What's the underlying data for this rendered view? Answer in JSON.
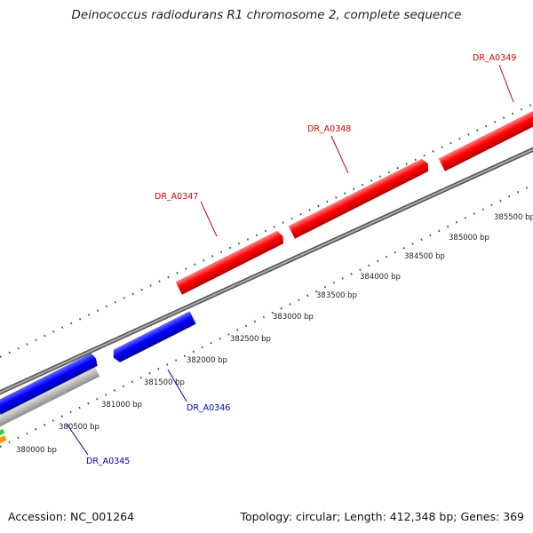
{
  "title": "Deinococcus radiodurans R1 chromosome 2, complete sequence",
  "footer": {
    "accession": "Accession: NC_001264",
    "summary": "Topology: circular; Length: 412,348 bp; Genes: 369"
  },
  "colors": {
    "forward_gene": "#ff0000",
    "reverse_gene": "#0000ff",
    "pseudo_gene": "#c8c8c8",
    "green_feature": "#33cc33",
    "orange_feature": "#ff9900",
    "backbone": "#888888",
    "gc_ticks": "#1a7a1a",
    "forward_label": "#cc0000",
    "reverse_label": "#0000aa"
  },
  "ruler_labels": [
    "380000 bp",
    "380500 bp",
    "381000 bp",
    "381500 bp",
    "382000 bp",
    "382500 bp",
    "383000 bp",
    "383500 bp",
    "384000 bp",
    "384500 bp",
    "385000 bp",
    "385500 bp"
  ],
  "genes": [
    {
      "id": "DR_A0345",
      "strand": "reverse",
      "label": "DR_A0345"
    },
    {
      "id": "DR_A0346",
      "strand": "reverse",
      "label": "DR_A0346"
    },
    {
      "id": "DR_A0347",
      "strand": "forward",
      "label": "DR_A0347"
    },
    {
      "id": "DR_A0348",
      "strand": "forward",
      "label": "DR_A0348"
    },
    {
      "id": "DR_A0349",
      "strand": "forward",
      "label": "DR_A0349"
    }
  ]
}
